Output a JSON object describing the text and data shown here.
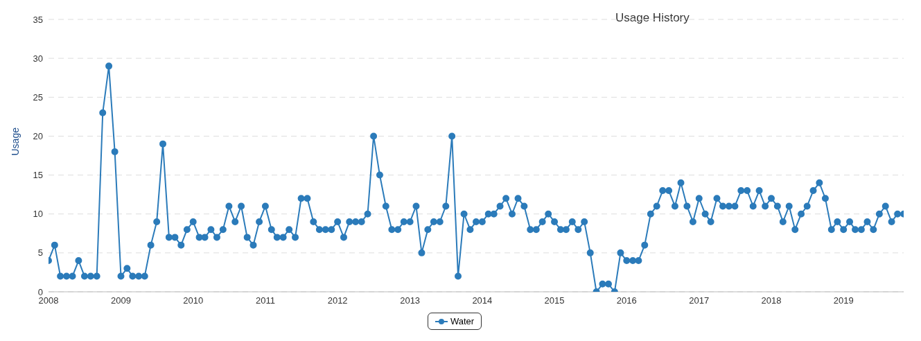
{
  "chart_data": {
    "type": "line",
    "title": "Usage History",
    "ylabel": "Usage",
    "x": [
      "2008-01",
      "2008-02",
      "2008-03",
      "2008-04",
      "2008-05",
      "2008-06",
      "2008-07",
      "2008-08",
      "2008-09",
      "2008-10",
      "2008-11",
      "2008-12",
      "2009-01",
      "2009-02",
      "2009-03",
      "2009-04",
      "2009-05",
      "2009-06",
      "2009-07",
      "2009-08",
      "2009-09",
      "2009-10",
      "2009-11",
      "2009-12",
      "2010-01",
      "2010-02",
      "2010-03",
      "2010-04",
      "2010-05",
      "2010-06",
      "2010-07",
      "2010-08",
      "2010-09",
      "2010-10",
      "2010-11",
      "2010-12",
      "2011-01",
      "2011-02",
      "2011-03",
      "2011-04",
      "2011-05",
      "2011-06",
      "2011-07",
      "2011-08",
      "2011-09",
      "2011-10",
      "2011-11",
      "2011-12",
      "2012-01",
      "2012-02",
      "2012-03",
      "2012-04",
      "2012-05",
      "2012-06",
      "2012-07",
      "2012-08",
      "2012-09",
      "2012-10",
      "2012-11",
      "2012-12",
      "2013-01",
      "2013-02",
      "2013-03",
      "2013-04",
      "2013-05",
      "2013-06",
      "2013-07",
      "2013-08",
      "2013-09",
      "2013-10",
      "2013-11",
      "2013-12",
      "2014-01",
      "2014-02",
      "2014-03",
      "2014-04",
      "2014-05",
      "2014-06",
      "2014-07",
      "2014-08",
      "2014-09",
      "2014-10",
      "2014-11",
      "2014-12",
      "2015-01",
      "2015-02",
      "2015-03",
      "2015-04",
      "2015-05",
      "2015-06",
      "2015-07",
      "2015-08",
      "2015-09",
      "2015-10",
      "2015-11",
      "2015-12",
      "2016-01",
      "2016-02",
      "2016-03",
      "2016-04",
      "2016-05",
      "2016-06",
      "2016-07",
      "2016-08",
      "2016-09",
      "2016-10",
      "2016-11",
      "2016-12",
      "2017-01",
      "2017-02",
      "2017-03",
      "2017-04",
      "2017-05",
      "2017-06",
      "2017-07",
      "2017-08",
      "2017-09",
      "2017-10",
      "2017-11",
      "2017-12",
      "2018-01",
      "2018-02",
      "2018-03",
      "2018-04",
      "2018-05",
      "2018-06",
      "2018-07",
      "2018-08",
      "2018-09",
      "2018-10",
      "2018-11",
      "2018-12",
      "2019-01",
      "2019-02",
      "2019-03",
      "2019-04",
      "2019-05",
      "2019-06",
      "2019-07",
      "2019-08",
      "2019-09",
      "2019-10",
      "2019-11"
    ],
    "ylim": [
      0,
      35
    ],
    "yticks": [
      0,
      5,
      10,
      15,
      20,
      25,
      30,
      35
    ],
    "xlim": [
      "2008-01",
      "2019-11"
    ],
    "xticks": [
      "2008",
      "2009",
      "2010",
      "2011",
      "2012",
      "2013",
      "2014",
      "2015",
      "2016",
      "2017",
      "2018",
      "2019"
    ],
    "grid": "y",
    "legend": "bottom",
    "marker": "circle",
    "line_style": "solid",
    "series": [
      {
        "name": "Water",
        "color": "#2b7bba",
        "values": [
          4,
          6,
          2,
          2,
          2,
          4,
          2,
          2,
          2,
          23,
          29,
          18,
          2,
          3,
          2,
          2,
          2,
          6,
          9,
          19,
          7,
          7,
          6,
          8,
          9,
          7,
          7,
          8,
          7,
          8,
          11,
          9,
          11,
          7,
          6,
          9,
          11,
          8,
          7,
          7,
          8,
          7,
          12,
          12,
          9,
          8,
          8,
          8,
          9,
          7,
          9,
          9,
          9,
          10,
          20,
          15,
          11,
          8,
          8,
          9,
          9,
          11,
          5,
          8,
          9,
          9,
          11,
          20,
          2,
          10,
          8,
          9,
          9,
          10,
          10,
          11,
          12,
          10,
          12,
          11,
          8,
          8,
          9,
          10,
          9,
          8,
          8,
          9,
          8,
          9,
          5,
          0,
          1,
          1,
          0,
          5,
          4,
          4,
          4,
          6,
          10,
          11,
          13,
          13,
          11,
          14,
          11,
          9,
          12,
          10,
          9,
          12,
          11,
          11,
          11,
          13,
          13,
          11,
          13,
          11,
          12,
          11,
          9,
          11,
          8,
          10,
          11,
          13,
          14,
          12,
          8,
          9,
          8,
          9,
          8,
          8,
          9,
          8,
          10,
          11,
          9,
          10,
          10
        ]
      }
    ]
  }
}
